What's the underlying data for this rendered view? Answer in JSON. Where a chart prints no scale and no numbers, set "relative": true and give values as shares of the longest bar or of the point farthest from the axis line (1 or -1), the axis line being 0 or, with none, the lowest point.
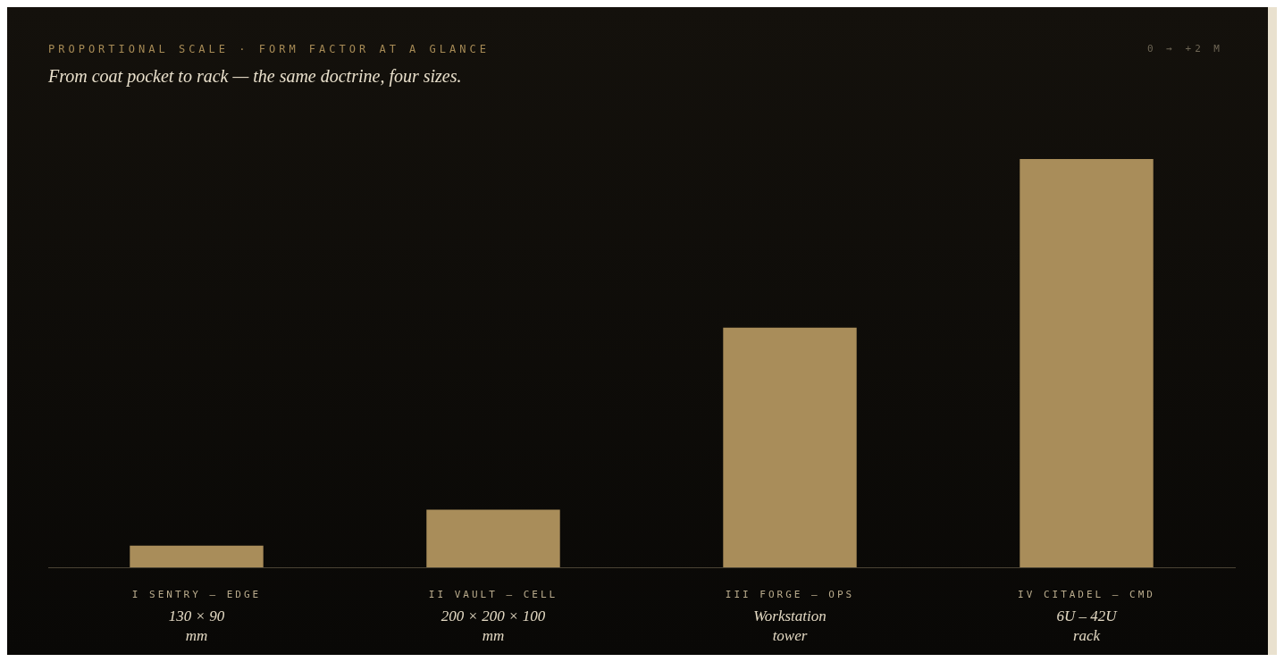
{
  "chart_data": {
    "type": "bar",
    "title": "PROPORTIONAL SCALE · FORM FACTOR AT A GLANCE",
    "subtitle": "From coat pocket to rack — the same doctrine, four sizes.",
    "annotations": [
      "0 → +2 M"
    ],
    "categories": [
      "I SENTRY — EDGE\n130 × 90\nmm",
      "II VAULT — CELL\n200 × 200 × 100\nmm",
      "III FORGE — OPS\nWorkstation\ntower",
      "IV CITADEL — CMD\n6U – 42U\nrack"
    ],
    "values": [
      0.053,
      0.141,
      0.587,
      1
    ],
    "color": "#a98d5a",
    "relative": true
  }
}
